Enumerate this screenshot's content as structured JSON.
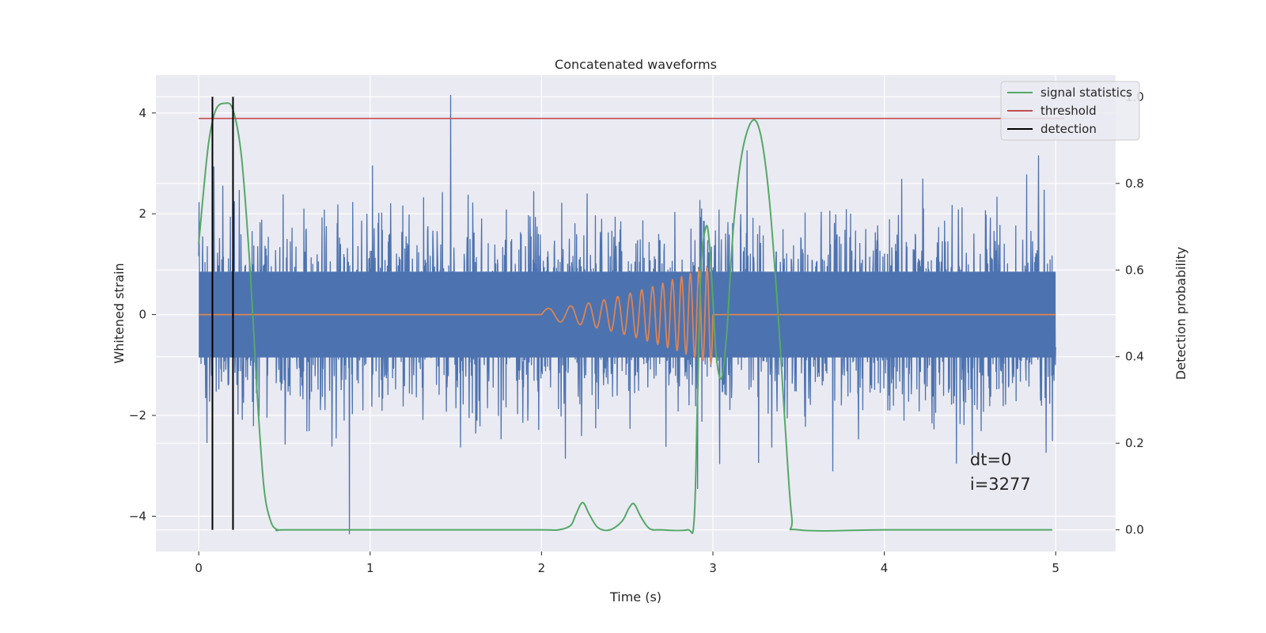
{
  "chart_data": {
    "type": "line",
    "title": "Concatenated waveforms",
    "xlabel": "Time (s)",
    "ylabel": "Whitened strain",
    "y2label": "Detection probability",
    "xlim": [
      -0.25,
      5.35
    ],
    "ylim": [
      -4.7,
      4.75
    ],
    "y2lim": [
      -0.05,
      1.05
    ],
    "x_ticks": [
      0,
      1,
      2,
      3,
      4,
      5
    ],
    "x_tick_labels": [
      "0",
      "1",
      "2",
      "3",
      "4",
      "5"
    ],
    "y_ticks": [
      -4,
      -2,
      0,
      2,
      4
    ],
    "y_tick_labels": [
      "−4",
      "−2",
      "0",
      "2",
      "4"
    ],
    "y2_ticks": [
      0.0,
      0.2,
      0.4,
      0.6,
      0.8,
      1.0
    ],
    "y2_tick_labels": [
      "0.0",
      "0.2",
      "0.4",
      "0.6",
      "0.8",
      "1.0"
    ],
    "grid": true,
    "style": "seaborn-darkgrid",
    "legend_position": "top-right",
    "legend": [
      {
        "label": "signal statistics",
        "color": "#55a868"
      },
      {
        "label": "threshold",
        "color": "#c44e52"
      },
      {
        "label": "detection",
        "color": "#000000"
      }
    ],
    "series": [
      {
        "id": "whitened_noise",
        "axis": "left",
        "color": "#4c72b0",
        "description": "whitened detector strain, Gaussian-like noise",
        "x_range": [
          0,
          5
        ],
        "core_band": [
          -0.85,
          0.85
        ],
        "typical_extremes": [
          -3.0,
          3.3
        ],
        "peaks": [
          {
            "x": 1.47,
            "y": 4.35
          },
          {
            "x": 0.88,
            "y": 3.35
          },
          {
            "x": 0.88,
            "y": -4.35
          },
          {
            "x": 2.95,
            "y": 1.85
          },
          {
            "x": 2.91,
            "y": -3.45
          },
          {
            "x": 3.2,
            "y": 3.25
          },
          {
            "x": 4.9,
            "y": 3.15
          },
          {
            "x": 0.08,
            "y": 2.7
          },
          {
            "x": 0.14,
            "y": 2.55
          },
          {
            "x": 4.42,
            "y": -2.95
          },
          {
            "x": 3.7,
            "y": -3.1
          }
        ]
      },
      {
        "id": "injected_chirp",
        "axis": "left",
        "color": "#dd8452",
        "description": "injected chirp template",
        "x_range": [
          0,
          5
        ],
        "chirp_start": 2.0,
        "chirp_end": 3.0,
        "start_amplitude": 0.12,
        "end_amplitude": 1.0,
        "start_frequency_hz": 6,
        "end_frequency_hz": 22
      },
      {
        "name": "signal statistics",
        "axis": "right",
        "color": "#55a868",
        "x": [
          0,
          0.03,
          0.06,
          0.1,
          0.15,
          0.2,
          0.25,
          0.3,
          0.34,
          0.38,
          0.42,
          0.46,
          0.5,
          1.0,
          1.5,
          2.0,
          2.1,
          2.17,
          2.2,
          2.24,
          2.28,
          2.33,
          2.4,
          2.47,
          2.51,
          2.54,
          2.58,
          2.63,
          2.7,
          2.85,
          2.89,
          2.91,
          2.93,
          2.96,
          2.98,
          3.0,
          3.02,
          3.05,
          3.08,
          3.12,
          3.17,
          3.23,
          3.28,
          3.33,
          3.38,
          3.42,
          3.46,
          3.5,
          4.0,
          4.5,
          4.98
        ],
        "y": [
          0.66,
          0.79,
          0.9,
          0.97,
          0.985,
          0.97,
          0.86,
          0.6,
          0.32,
          0.1,
          0.02,
          0.0,
          0.0,
          0.0,
          0.0,
          0.0,
          0.0,
          0.01,
          0.035,
          0.063,
          0.035,
          0.005,
          0.0,
          0.02,
          0.05,
          0.06,
          0.03,
          0.003,
          0.0,
          0.0,
          0.02,
          0.3,
          0.6,
          0.7,
          0.66,
          0.53,
          0.4,
          0.35,
          0.45,
          0.7,
          0.87,
          0.945,
          0.91,
          0.76,
          0.5,
          0.25,
          0.03,
          0.0,
          0.0,
          0.0,
          0.0
        ]
      },
      {
        "name": "threshold",
        "axis": "right",
        "color": "#c44e52",
        "x": [
          0,
          5.05
        ],
        "y": [
          0.95,
          0.95
        ]
      },
      {
        "name": "detection",
        "axis": "right",
        "color": "#000000",
        "type": "vlines",
        "x": [
          0.08,
          0.2
        ],
        "y": [
          0.0,
          1.0
        ]
      }
    ],
    "annotation": {
      "lines": [
        "dt=0",
        "i=3277"
      ],
      "x": 4.5,
      "y": -3.4
    }
  }
}
